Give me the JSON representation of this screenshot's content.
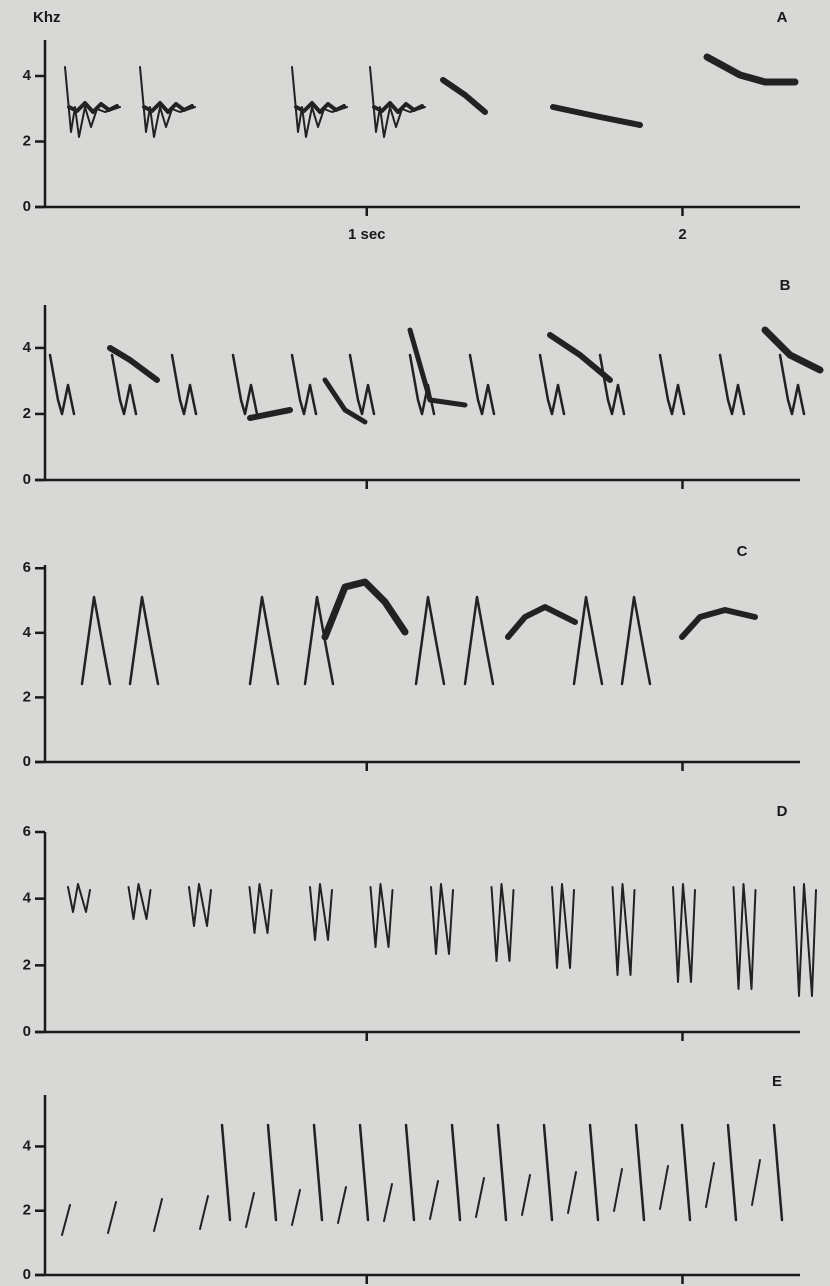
{
  "chart_data": [
    {
      "type": "spectrogram",
      "panel_label": "A",
      "ylabel": "Khz",
      "ylim": [
        0,
        5.1
      ],
      "yticks": [
        0,
        2,
        4
      ],
      "xlim": [
        0,
        2.35
      ],
      "xticks": [
        {
          "value": 1,
          "label": "1 sec"
        },
        2
      ]
    },
    {
      "type": "spectrogram",
      "panel_label": "B",
      "ylim": [
        0,
        5.3
      ],
      "yticks": [
        0,
        2,
        4
      ],
      "xlim": [
        0,
        2.35
      ],
      "xticks": [
        {
          "value": 1,
          "label": null
        },
        {
          "value": 2,
          "label": null
        }
      ]
    },
    {
      "type": "spectrogram",
      "panel_label": "C",
      "ylim": [
        0,
        6.1
      ],
      "yticks": [
        0,
        2,
        4,
        6
      ],
      "xlim": [
        0,
        2.35
      ],
      "xticks": [
        {
          "value": 1,
          "label": null
        },
        {
          "value": 2,
          "label": null
        }
      ]
    },
    {
      "type": "spectrogram",
      "panel_label": "D",
      "ylim": [
        0,
        6
      ],
      "yticks": [
        0,
        2,
        4,
        6
      ],
      "xlim": [
        0,
        2.35
      ],
      "xticks": [
        {
          "value": 1,
          "label": null
        },
        {
          "value": 2,
          "label": null
        }
      ]
    },
    {
      "type": "spectrogram",
      "panel_label": "E",
      "ylim": [
        0,
        5.6
      ],
      "yticks": [
        0,
        2,
        4
      ],
      "xlim": [
        0,
        2.35
      ],
      "xticks": [
        {
          "value": 1,
          "label": null
        },
        {
          "value": 2,
          "label": null
        }
      ]
    }
  ]
}
